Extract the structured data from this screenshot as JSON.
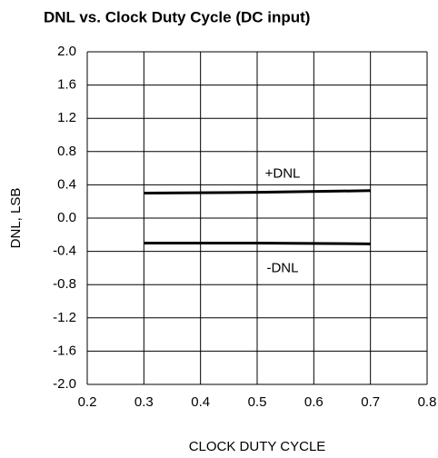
{
  "chart_data": {
    "type": "line",
    "title": "DNL vs. Clock Duty Cycle (DC input)",
    "x_label": "CLOCK DUTY CYCLE",
    "y_label": "DNL, LSB",
    "x": [
      0.3,
      0.5,
      0.7
    ],
    "series": [
      {
        "name": "+DNL",
        "color": "#000000",
        "values": [
          0.3,
          0.31,
          0.33
        ]
      },
      {
        "name": "-DNL",
        "color": "#000000",
        "values": [
          -0.3,
          -0.3,
          -0.31
        ]
      }
    ],
    "xlim": [
      0.2,
      0.8
    ],
    "xticks": [
      0.2,
      0.3,
      0.4,
      0.5,
      0.6,
      0.7,
      0.8
    ],
    "ylim": [
      -2.0,
      2.0
    ],
    "yticks": [
      {
        "value": -2.0,
        "label": "-2.0"
      },
      -1.6,
      -1.2,
      -0.8,
      -0.4,
      {
        "value": 0,
        "label": "0.0"
      },
      0.4,
      0.8,
      1.2,
      1.6,
      {
        "value": 2.0,
        "label": "2.0"
      }
    ],
    "grid": true
  }
}
